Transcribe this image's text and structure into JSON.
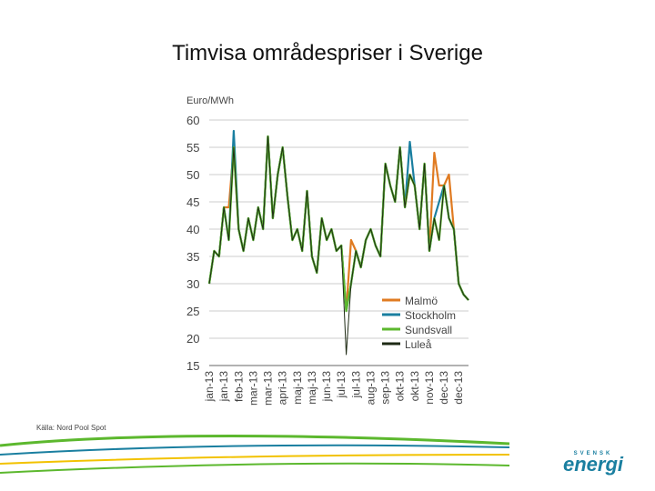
{
  "title": "Timvisa områdespriser i Sverige",
  "source": "Källa: Nord Pool Spot",
  "logo": {
    "top": "SVENSK",
    "main": "energi"
  },
  "chart_data": {
    "type": "line",
    "y_label": "Euro/MWh",
    "categories": [
      "jan-13",
      null,
      null,
      "jan-13",
      null,
      null,
      "feb-13",
      null,
      null,
      "mar-13",
      null,
      null,
      "mar-13",
      null,
      null,
      "apri-13",
      null,
      null,
      "maj-13",
      null,
      null,
      "maj-13",
      null,
      null,
      "jun-13",
      null,
      null,
      "jul-13",
      null,
      null,
      "jul-13",
      null,
      null,
      "aug-13",
      null,
      null,
      "sep-13",
      null,
      null,
      "okt-13",
      null,
      null,
      "okt-13",
      null,
      null,
      "nov-13",
      null,
      null,
      "dec-13",
      null,
      null,
      "dec-13",
      null,
      null
    ],
    "ylim": [
      15,
      60
    ],
    "yticks": [
      15,
      20,
      25,
      30,
      35,
      40,
      45,
      50,
      55,
      60
    ],
    "grid": true,
    "series": [
      {
        "name": "Malmö",
        "color": "#e07b22",
        "values": [
          30,
          36,
          35,
          44,
          44,
          55,
          40,
          36,
          42,
          38,
          44,
          40,
          57,
          42,
          50,
          55,
          46,
          38,
          40,
          36,
          47,
          35,
          32,
          42,
          38,
          40,
          36,
          37,
          25,
          38,
          36,
          33,
          38,
          40,
          37,
          35,
          52,
          48,
          45,
          55,
          44,
          50,
          48,
          40,
          52,
          36,
          54,
          48,
          48,
          50,
          40,
          30,
          28,
          27
        ]
      },
      {
        "name": "Stockholm",
        "color": "#1a7fa0",
        "values": [
          30,
          36,
          35,
          44,
          38,
          58,
          40,
          36,
          42,
          38,
          44,
          40,
          57,
          42,
          50,
          55,
          46,
          38,
          40,
          36,
          47,
          35,
          32,
          42,
          38,
          40,
          36,
          37,
          25,
          30,
          36,
          33,
          38,
          40,
          37,
          35,
          52,
          48,
          45,
          55,
          44,
          56,
          48,
          40,
          52,
          36,
          42,
          45,
          48,
          42,
          40,
          30,
          28,
          27
        ]
      },
      {
        "name": "Sundsvall",
        "color": "#5cb82e",
        "values": [
          30,
          36,
          35,
          44,
          38,
          55,
          40,
          36,
          42,
          38,
          44,
          40,
          57,
          42,
          50,
          55,
          46,
          38,
          40,
          36,
          47,
          35,
          32,
          42,
          38,
          40,
          36,
          37,
          25,
          30,
          36,
          33,
          38,
          40,
          37,
          35,
          52,
          48,
          45,
          55,
          44,
          50,
          48,
          40,
          52,
          36,
          42,
          38,
          48,
          42,
          40,
          30,
          28,
          27
        ]
      },
      {
        "name": "Luleå",
        "color": "#1e2a14",
        "values": [
          30,
          36,
          35,
          44,
          38,
          55,
          40,
          36,
          42,
          38,
          44,
          40,
          57,
          42,
          50,
          55,
          46,
          38,
          40,
          36,
          47,
          35,
          32,
          42,
          38,
          40,
          36,
          37,
          17,
          30,
          36,
          33,
          38,
          40,
          37,
          35,
          52,
          48,
          45,
          55,
          44,
          50,
          48,
          40,
          52,
          36,
          42,
          38,
          48,
          42,
          40,
          30,
          28,
          27
        ]
      }
    ]
  }
}
